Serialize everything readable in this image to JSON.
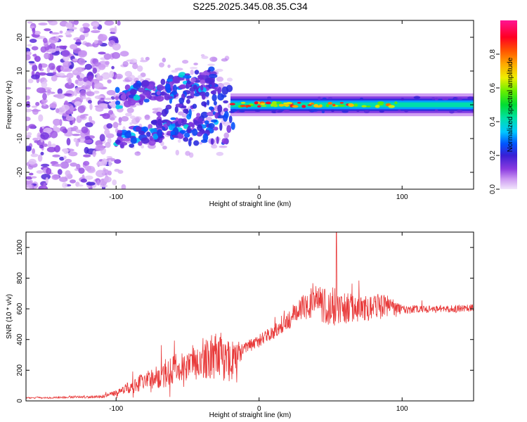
{
  "title": "S225.2025.345.08.35.C34",
  "chart_data": [
    {
      "type": "heatmap",
      "xlabel": "Height of straight line (km)",
      "ylabel": "Frequency (Hz)",
      "xlim": [
        -163,
        150
      ],
      "ylim": [
        -25,
        25
      ],
      "x_ticks": [
        -100,
        0,
        100
      ],
      "y_ticks": [
        -20,
        -10,
        0,
        10,
        20
      ],
      "colorbar": {
        "label": "Normalized spectral amplitude",
        "range": [
          0,
          1
        ],
        "ticks": [
          0.0,
          0.2,
          0.4,
          0.6,
          0.8
        ]
      },
      "features": [
        {
          "name": "noise-scatter",
          "x_range": [
            -163,
            -100
          ],
          "y_range": [
            -25,
            25
          ],
          "amplitude": 0.1
        },
        {
          "name": "branch-upper",
          "x_start": -100,
          "x_end": -30,
          "y_start": 2,
          "y_end": 8,
          "amplitude": 0.35
        },
        {
          "name": "branch-lower",
          "x_start": -100,
          "x_end": -30,
          "y_start": -10,
          "y_end": -5,
          "amplitude": 0.3
        },
        {
          "name": "main-band",
          "x_range": [
            -20,
            150
          ],
          "y_center": 0,
          "half_width_hz": 1.3,
          "amplitude": 0.45
        }
      ]
    },
    {
      "type": "line",
      "xlabel": "Height of straight line (km)",
      "ylabel": "SNR (10 * v/v)",
      "xlim": [
        -163,
        150
      ],
      "ylim": [
        0,
        1100
      ],
      "x_ticks": [
        -100,
        0,
        100
      ],
      "y_ticks": [
        0,
        200,
        400,
        600,
        800,
        1000
      ],
      "series": [
        {
          "name": "SNR",
          "color": "#e83a3a",
          "x": [
            -163,
            -150,
            -140,
            -130,
            -120,
            -110,
            -100,
            -90,
            -80,
            -70,
            -60,
            -50,
            -40,
            -30,
            -20,
            -10,
            0,
            10,
            20,
            30,
            40,
            50,
            60,
            70,
            80,
            90,
            100,
            110,
            120,
            130,
            140,
            150
          ],
          "values": [
            20,
            20,
            22,
            25,
            25,
            28,
            50,
            90,
            130,
            160,
            200,
            230,
            280,
            290,
            260,
            350,
            390,
            450,
            520,
            620,
            640,
            620,
            600,
            600,
            620,
            610,
            590,
            600,
            595,
            600,
            600,
            610
          ],
          "noise_amplitude": [
            5,
            5,
            6,
            8,
            8,
            10,
            20,
            40,
            60,
            80,
            100,
            110,
            130,
            150,
            140,
            40,
            45,
            50,
            60,
            90,
            110,
            130,
            110,
            90,
            90,
            80,
            30,
            25,
            25,
            25,
            25,
            25
          ],
          "peak": {
            "x": 54,
            "y": 1100
          }
        }
      ]
    }
  ]
}
